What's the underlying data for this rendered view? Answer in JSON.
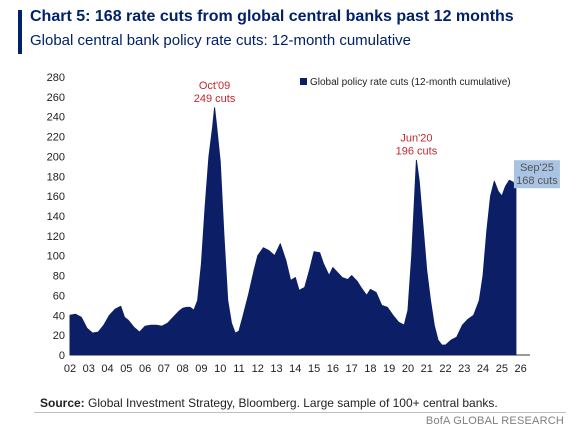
{
  "header": {
    "title": "Chart 5: 168 rate cuts from global central banks past 12 months",
    "subtitle": "Global central bank policy rate cuts: 12-month cumulative"
  },
  "footer": {
    "source_label": "Source:",
    "source_text": "Global Investment Strategy, Bloomberg. Large sample of 100+ central banks.",
    "brand": "BofA GLOBAL RESEARCH"
  },
  "colors": {
    "area": "#0c1f66",
    "annotation": "#c0282e",
    "highlight_box": "#a9c4e2",
    "axis_text": "#222222"
  },
  "chart_data": {
    "type": "area",
    "ylim": [
      0,
      280
    ],
    "yticks": [
      0,
      20,
      40,
      60,
      80,
      100,
      120,
      140,
      160,
      180,
      200,
      220,
      240,
      260,
      280
    ],
    "xlim": [
      2002,
      2026.5
    ],
    "xtick_labels": [
      "02",
      "03",
      "04",
      "05",
      "06",
      "07",
      "08",
      "09",
      "10",
      "11",
      "12",
      "13",
      "14",
      "15",
      "16",
      "17",
      "18",
      "19",
      "20",
      "21",
      "22",
      "23",
      "24",
      "25",
      "26"
    ],
    "legend": {
      "label": "Global policy rate cuts (12-month cumulative)",
      "position": "top-right"
    },
    "grid": false,
    "series": [
      {
        "name": "Global policy rate cuts (12-month cumulative)",
        "x": [
          2002.0,
          2002.3,
          2002.6,
          2002.9,
          2003.2,
          2003.5,
          2003.8,
          2004.1,
          2004.4,
          2004.7,
          2004.9,
          2005.1,
          2005.4,
          2005.7,
          2006.0,
          2006.3,
          2006.6,
          2006.9,
          2007.2,
          2007.5,
          2007.8,
          2008.0,
          2008.2,
          2008.4,
          2008.6,
          2008.8,
          2009.0,
          2009.2,
          2009.4,
          2009.6,
          2009.7,
          2009.8,
          2010.0,
          2010.2,
          2010.4,
          2010.6,
          2010.8,
          2011.0,
          2011.2,
          2011.5,
          2011.8,
          2012.0,
          2012.3,
          2012.6,
          2012.9,
          2013.2,
          2013.5,
          2013.75,
          2014.0,
          2014.2,
          2014.5,
          2014.75,
          2015.0,
          2015.3,
          2015.5,
          2015.8,
          2016.0,
          2016.3,
          2016.5,
          2016.8,
          2017.0,
          2017.3,
          2017.5,
          2017.8,
          2018.0,
          2018.3,
          2018.6,
          2018.9,
          2019.2,
          2019.5,
          2019.8,
          2020.0,
          2020.2,
          2020.45,
          2020.6,
          2020.8,
          2021.0,
          2021.2,
          2021.4,
          2021.6,
          2021.8,
          2022.0,
          2022.3,
          2022.6,
          2022.9,
          2023.2,
          2023.5,
          2023.8,
          2024.0,
          2024.2,
          2024.4,
          2024.6,
          2024.8,
          2025.0,
          2025.2,
          2025.4,
          2025.6,
          2025.75
        ],
        "values": [
          40,
          41,
          38,
          27,
          22,
          23,
          30,
          40,
          46,
          49,
          38,
          35,
          28,
          23,
          29,
          30,
          30,
          29,
          32,
          38,
          44,
          47,
          48,
          48,
          45,
          55,
          92,
          150,
          200,
          230,
          249,
          232,
          195,
          120,
          55,
          32,
          22,
          24,
          38,
          60,
          85,
          100,
          108,
          105,
          100,
          112,
          95,
          75,
          78,
          65,
          68,
          85,
          104,
          103,
          92,
          80,
          88,
          82,
          78,
          76,
          80,
          74,
          68,
          60,
          66,
          63,
          50,
          48,
          40,
          33,
          30,
          45,
          100,
          196,
          175,
          130,
          85,
          55,
          30,
          15,
          10,
          10,
          15,
          18,
          30,
          36,
          40,
          55,
          80,
          125,
          160,
          175,
          165,
          160,
          170,
          176,
          174,
          168
        ]
      }
    ],
    "annotations": [
      {
        "x": 2009.7,
        "y": 249,
        "label": "Oct'09",
        "sub": "249 cuts",
        "highlight": false
      },
      {
        "x": 2020.45,
        "y": 196,
        "label": "Jun'20",
        "sub": "196 cuts",
        "highlight": false
      },
      {
        "x": 2025.75,
        "y": 168,
        "label": "Sep'25",
        "sub": "168 cuts",
        "highlight": true
      }
    ]
  }
}
